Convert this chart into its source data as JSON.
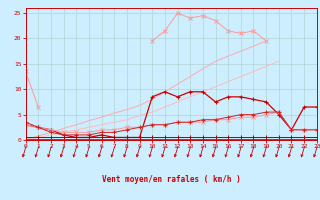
{
  "x": [
    0,
    1,
    2,
    3,
    4,
    5,
    6,
    7,
    8,
    9,
    10,
    11,
    12,
    13,
    14,
    15,
    16,
    17,
    18,
    19,
    20,
    21,
    22,
    23
  ],
  "series": [
    {
      "name": "line1_light_pink_peaked",
      "color": "#ff9999",
      "lw": 0.7,
      "marker": "x",
      "ms": 2.5,
      "mew": 0.7,
      "y": [
        13.5,
        6.5,
        null,
        null,
        null,
        null,
        null,
        null,
        null,
        null,
        19.5,
        21.5,
        25.0,
        24.0,
        24.5,
        23.5,
        21.5,
        21.0,
        21.5,
        19.5,
        null,
        null,
        null,
        null
      ]
    },
    {
      "name": "line2_pink_diagonal_upper",
      "color": "#ffaaaa",
      "lw": 0.7,
      "marker": null,
      "ms": 0,
      "mew": 0,
      "y": [
        0.0,
        0.8,
        1.5,
        2.3,
        3.0,
        3.8,
        4.5,
        5.3,
        6.0,
        6.8,
        8.0,
        9.5,
        11.0,
        12.5,
        14.0,
        15.5,
        16.5,
        17.5,
        18.5,
        19.5,
        null,
        null,
        null,
        null
      ]
    },
    {
      "name": "line3_pink_diagonal_mid",
      "color": "#ffbbbb",
      "lw": 0.7,
      "marker": null,
      "ms": 0,
      "mew": 0,
      "y": [
        0.0,
        0.5,
        1.0,
        1.5,
        2.0,
        2.5,
        3.0,
        3.5,
        4.0,
        4.8,
        5.5,
        6.5,
        7.5,
        8.5,
        9.5,
        10.5,
        11.5,
        12.5,
        13.5,
        14.5,
        15.5,
        null,
        null,
        null
      ]
    },
    {
      "name": "line4_red_wavy",
      "color": "#cc0000",
      "lw": 0.9,
      "marker": "+",
      "ms": 3,
      "mew": 0.8,
      "y": [
        3.0,
        2.5,
        2.0,
        1.0,
        0.5,
        0.5,
        1.0,
        0.5,
        0.5,
        0.5,
        8.5,
        9.5,
        8.5,
        9.5,
        9.5,
        7.5,
        8.5,
        8.5,
        8.0,
        7.5,
        5.0,
        2.0,
        6.5,
        6.5
      ]
    },
    {
      "name": "line5_pink_slow_rise",
      "color": "#ff9999",
      "lw": 0.7,
      "marker": "x",
      "ms": 2.5,
      "mew": 0.7,
      "y": [
        3.0,
        2.5,
        2.0,
        1.5,
        1.5,
        1.5,
        2.0,
        2.0,
        2.5,
        2.5,
        3.0,
        3.0,
        3.5,
        3.5,
        3.5,
        4.0,
        4.0,
        4.5,
        4.5,
        5.0,
        5.5,
        2.0,
        2.0,
        2.0
      ]
    },
    {
      "name": "line6_dark_red_flat",
      "color": "#cc2222",
      "lw": 0.7,
      "marker": "+",
      "ms": 2.5,
      "mew": 0.7,
      "y": [
        3.5,
        2.5,
        1.5,
        1.0,
        1.0,
        1.0,
        1.5,
        1.5,
        2.0,
        2.5,
        3.0,
        3.0,
        3.5,
        3.5,
        4.0,
        4.0,
        4.5,
        5.0,
        5.0,
        5.5,
        5.5,
        2.0,
        2.0,
        2.0
      ]
    },
    {
      "name": "line7_dark_bottom",
      "color": "#aa0000",
      "lw": 0.7,
      "marker": "+",
      "ms": 2.5,
      "mew": 0.7,
      "y": [
        0.5,
        0.5,
        0.5,
        0.5,
        0.5,
        0.5,
        0.5,
        0.5,
        0.5,
        0.5,
        0.5,
        0.5,
        0.5,
        0.5,
        0.5,
        0.5,
        0.5,
        0.5,
        0.5,
        0.5,
        0.5,
        0.5,
        0.5,
        0.5
      ]
    }
  ],
  "xlim": [
    0,
    23
  ],
  "ylim": [
    0,
    26
  ],
  "xticks": [
    0,
    1,
    2,
    3,
    4,
    5,
    6,
    7,
    8,
    9,
    10,
    11,
    12,
    13,
    14,
    15,
    16,
    17,
    18,
    19,
    20,
    21,
    22,
    23
  ],
  "yticks": [
    0,
    5,
    10,
    15,
    20,
    25
  ],
  "xlabel": "Vent moyen/en rafales ( km/h )",
  "bg_color": "#cceeff",
  "grid_color": "#aacccc",
  "axis_color": "#cc0000",
  "label_color": "#cc0000",
  "tick_color": "#cc0000",
  "arrow_color": "#cc0000"
}
